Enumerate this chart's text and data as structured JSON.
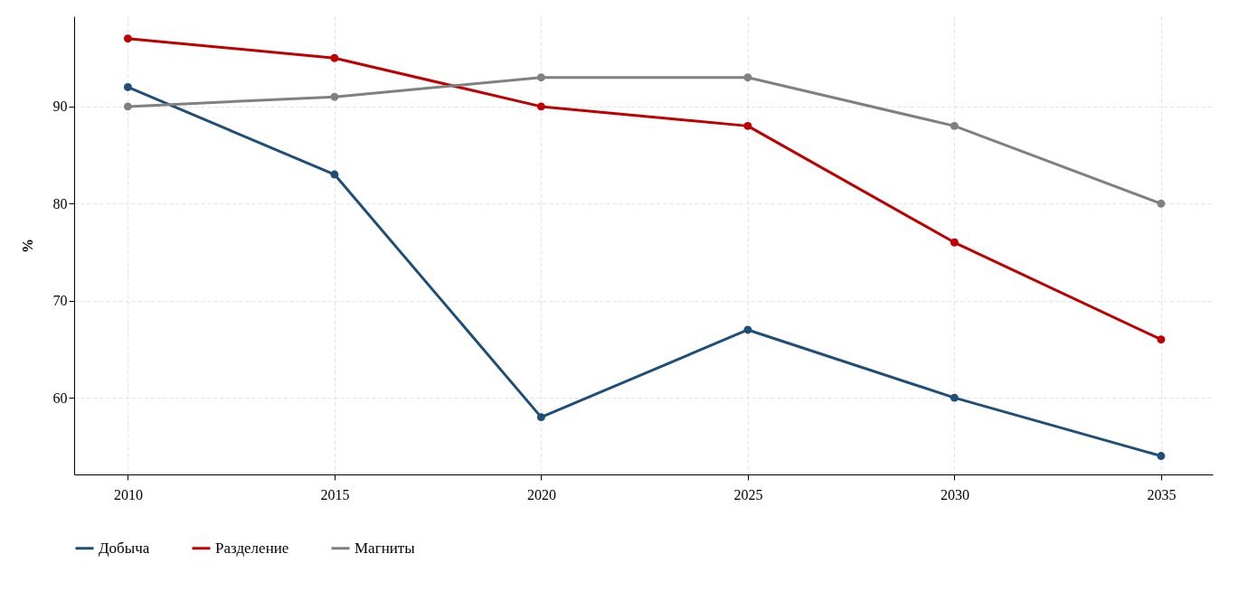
{
  "chart_data": {
    "type": "line",
    "ylabel": "%",
    "x": [
      2010,
      2015,
      2020,
      2025,
      2030,
      2035
    ],
    "xlim": [
      2008.7,
      2036.25
    ],
    "xticks": [
      2010,
      2015,
      2020,
      2025,
      2030,
      2035
    ],
    "ylim": [
      52.1,
      99.3
    ],
    "yticks": [
      60,
      70,
      80,
      90
    ],
    "grid": true,
    "legend": "bottom",
    "marker": "circle",
    "line_style": "solid",
    "series": [
      {
        "name": "Добыча",
        "color": "#1f4e79",
        "values": [
          92,
          83,
          58,
          67,
          60,
          54
        ]
      },
      {
        "name": "Разделение",
        "color": "#c00000",
        "values": [
          97,
          95,
          90,
          88,
          76,
          66
        ]
      },
      {
        "name": "Магниты",
        "color": "#808080",
        "values": [
          90,
          91,
          93,
          93,
          88,
          80
        ]
      }
    ]
  }
}
